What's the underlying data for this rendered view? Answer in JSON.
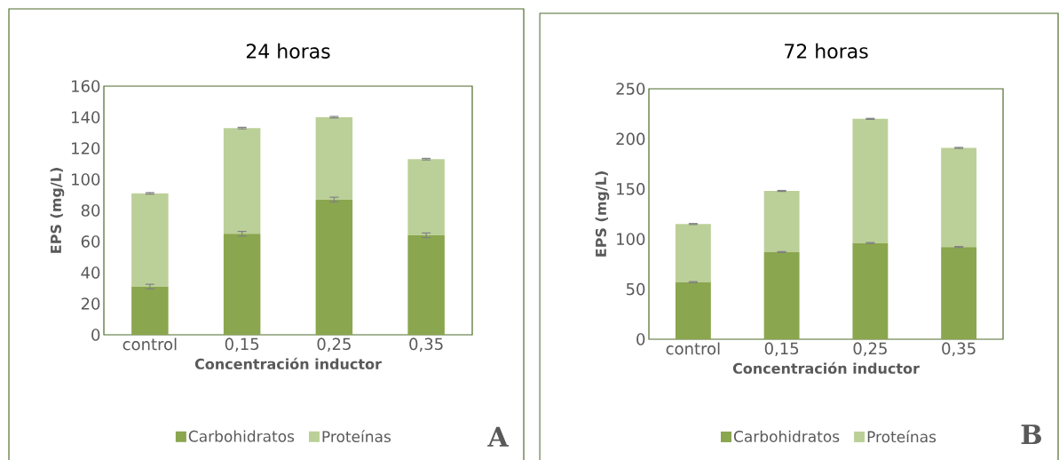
{
  "chart_data": [
    {
      "type": "bar",
      "stacked": true,
      "title": "24 horas",
      "xlabel": "Concentración inductor",
      "ylabel": "EPS (mg/L)",
      "categories": [
        "control",
        "0,15",
        "0,25",
        "0,35"
      ],
      "series": [
        {
          "name": "Carbohidratos",
          "color": "#8aa64e",
          "values": [
            31,
            65,
            87,
            64
          ],
          "errors": [
            1.5,
            1.5,
            1.5,
            1.5
          ]
        },
        {
          "name": "Proteínas",
          "color": "#bbd098",
          "values": [
            60,
            68,
            53,
            49
          ],
          "errors": [
            0.5,
            0.5,
            0.5,
            0.5
          ]
        }
      ],
      "ylim": [
        0,
        160
      ],
      "yticks": [
        0,
        20,
        40,
        60,
        80,
        100,
        120,
        140,
        160
      ],
      "legend": "bottom",
      "annotations": [
        "A"
      ]
    },
    {
      "type": "bar",
      "stacked": true,
      "title": "72 horas",
      "xlabel": "Concentración inductor",
      "ylabel": "EPS (mg/L)",
      "categories": [
        "control",
        "0,15",
        "0,25",
        "0,35"
      ],
      "series": [
        {
          "name": "Carbohidratos",
          "color": "#8aa64e",
          "values": [
            57,
            87,
            96,
            92
          ],
          "errors": [
            0.5,
            0.5,
            0.5,
            0.5
          ]
        },
        {
          "name": "Proteínas",
          "color": "#bbd098",
          "values": [
            58,
            61,
            124,
            99
          ],
          "errors": [
            0.5,
            0.5,
            0.5,
            0.5
          ]
        }
      ],
      "ylim": [
        0,
        250
      ],
      "yticks": [
        0,
        50,
        100,
        150,
        200,
        250
      ],
      "legend": "bottom",
      "annotations": [
        "B"
      ]
    }
  ]
}
